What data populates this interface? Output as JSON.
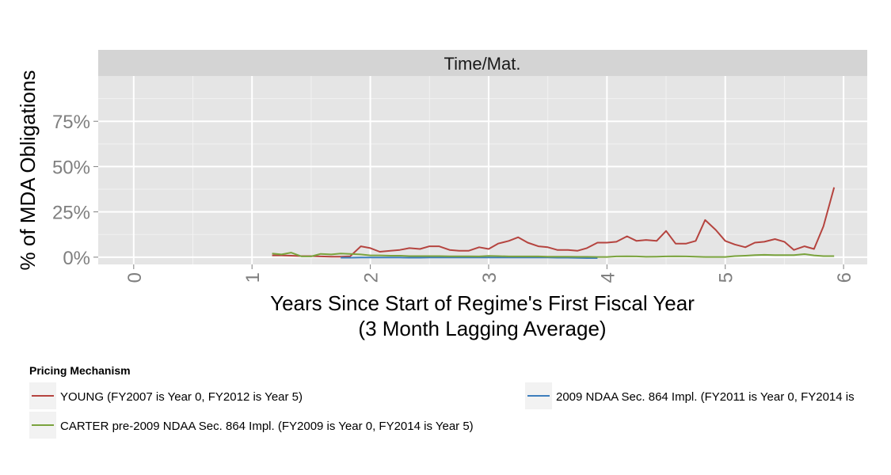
{
  "chart_data": {
    "type": "line",
    "facet_label": "Time/Mat.",
    "xlabel_line1": "Years Since Start of Regime's First Fiscal Year",
    "xlabel_line2": "(3 Month Lagging Average)",
    "ylabel": "% of MDA Obligations",
    "xlim": [
      -0.3,
      6.2
    ],
    "ylim": [
      -0.04,
      1.0
    ],
    "x_ticks": [
      0,
      1,
      2,
      3,
      4,
      5,
      6
    ],
    "x_tick_labels": [
      "0",
      "1",
      "2",
      "3",
      "4",
      "5",
      "6"
    ],
    "y_ticks": [
      0,
      0.25,
      0.5,
      0.75
    ],
    "y_tick_labels": [
      "0%",
      "25%",
      "50%",
      "75%"
    ],
    "grid": true,
    "legend_title": "Pricing Mechanism",
    "legend_position": "bottom",
    "series": [
      {
        "name": "YOUNG (FY2007 is Year 0, FY2012 is Year 5)",
        "color": "#b5443f",
        "x": [
          1.17,
          1.25,
          1.33,
          1.42,
          1.5,
          1.58,
          1.67,
          1.75,
          1.83,
          1.92,
          2.0,
          2.08,
          2.17,
          2.25,
          2.33,
          2.42,
          2.5,
          2.58,
          2.67,
          2.75,
          2.83,
          2.92,
          3.0,
          3.08,
          3.17,
          3.25,
          3.33,
          3.42,
          3.5,
          3.58,
          3.67,
          3.75,
          3.83,
          3.92,
          4.0,
          4.08,
          4.17,
          4.25,
          4.33,
          4.42,
          4.5,
          4.58,
          4.67,
          4.75,
          4.83,
          4.92,
          5.0,
          5.08,
          5.17,
          5.25,
          5.33,
          5.42,
          5.5,
          5.58,
          5.67,
          5.75,
          5.83,
          5.92
        ],
        "y": [
          0.01,
          0.01,
          0.008,
          0.006,
          0.006,
          0.004,
          0.003,
          0.003,
          0.005,
          0.06,
          0.05,
          0.03,
          0.035,
          0.04,
          0.05,
          0.045,
          0.06,
          0.06,
          0.04,
          0.035,
          0.035,
          0.055,
          0.045,
          0.075,
          0.09,
          0.11,
          0.08,
          0.06,
          0.055,
          0.04,
          0.04,
          0.035,
          0.05,
          0.08,
          0.08,
          0.085,
          0.115,
          0.09,
          0.095,
          0.09,
          0.145,
          0.075,
          0.075,
          0.09,
          0.205,
          0.15,
          0.09,
          0.07,
          0.055,
          0.08,
          0.085,
          0.1,
          0.085,
          0.04,
          0.06,
          0.045,
          0.17,
          0.385
        ]
      },
      {
        "name": "2009 NDAA Sec. 864 Impl. (FY2011 is Year 0, FY2014 is",
        "color": "#3d7ebd",
        "x": [
          1.75,
          1.83,
          1.92,
          2.0,
          2.08,
          2.17,
          2.25,
          2.33,
          2.42,
          2.5,
          2.58,
          2.67,
          2.75,
          2.83,
          2.92,
          3.0,
          3.08,
          3.17,
          3.25,
          3.33,
          3.42,
          3.5,
          3.58,
          3.67,
          3.75,
          3.83,
          3.92
        ],
        "y": [
          -0.003,
          -0.003,
          -0.002,
          -0.002,
          -0.002,
          -0.002,
          -0.002,
          -0.003,
          -0.003,
          -0.002,
          -0.002,
          -0.002,
          -0.002,
          -0.002,
          -0.002,
          -0.002,
          -0.002,
          -0.002,
          -0.002,
          -0.002,
          -0.002,
          -0.002,
          -0.003,
          -0.003,
          -0.004,
          -0.005,
          -0.005
        ]
      },
      {
        "name": "CARTER pre-2009 NDAA Sec. 864 Impl. (FY2009 is Year 0, FY2014 is Year 5)",
        "color": "#7aa33d",
        "x": [
          1.17,
          1.25,
          1.33,
          1.42,
          1.5,
          1.58,
          1.67,
          1.75,
          1.83,
          1.92,
          2.0,
          2.08,
          2.17,
          2.25,
          2.33,
          2.42,
          2.5,
          2.58,
          2.67,
          2.75,
          2.83,
          2.92,
          3.0,
          3.08,
          3.17,
          3.25,
          3.33,
          3.42,
          3.5,
          3.58,
          3.67,
          3.75,
          3.83,
          3.92,
          4.0,
          4.08,
          4.17,
          4.25,
          4.33,
          4.42,
          4.5,
          4.58,
          4.67,
          4.75,
          4.83,
          4.92,
          5.0,
          5.08,
          5.17,
          5.25,
          5.33,
          5.42,
          5.5,
          5.58,
          5.67,
          5.75,
          5.83,
          5.92
        ],
        "y": [
          0.02,
          0.015,
          0.025,
          0.004,
          0.004,
          0.018,
          0.015,
          0.02,
          0.018,
          0.015,
          0.01,
          0.01,
          0.008,
          0.008,
          0.006,
          0.006,
          0.006,
          0.006,
          0.005,
          0.005,
          0.005,
          0.004,
          0.007,
          0.006,
          0.004,
          0.004,
          0.004,
          0.004,
          0.003,
          0.003,
          0.003,
          0.002,
          0.002,
          0.001,
          0.001,
          0.004,
          0.005,
          0.004,
          0.002,
          0.003,
          0.004,
          0.005,
          0.004,
          0.003,
          0.001,
          0.001,
          0.001,
          0.006,
          0.008,
          0.011,
          0.013,
          0.011,
          0.011,
          0.011,
          0.017,
          0.01,
          0.006,
          0.006
        ]
      }
    ]
  }
}
